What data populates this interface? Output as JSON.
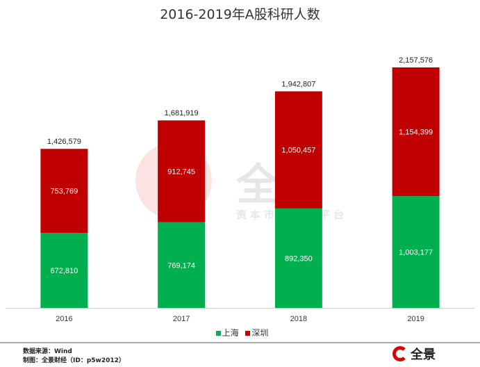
{
  "chart_data": {
    "type": "bar",
    "stacked": true,
    "title": "2016-2019年A股科研人数",
    "categories": [
      "2016",
      "2017",
      "2018",
      "2019"
    ],
    "series": [
      {
        "name": "上海",
        "color": "#00b050",
        "values": [
          672810,
          769174,
          892350,
          1003177
        ]
      },
      {
        "name": "深圳",
        "color": "#c00000",
        "values": [
          753769,
          912745,
          1050457,
          1154399
        ]
      }
    ],
    "totals": [
      1426579,
      1681919,
      1942807,
      2157576
    ],
    "ylim": [
      0,
      2600000
    ],
    "grid": false,
    "legend": "bottom"
  },
  "footer": {
    "source": "数据来源：Wind",
    "made_by": "制图：全景财经（ID：p5w2012）"
  },
  "logo": {
    "text": "全景"
  },
  "watermark": {
    "brand": "全景",
    "tagline": "资本市场服务平台"
  }
}
